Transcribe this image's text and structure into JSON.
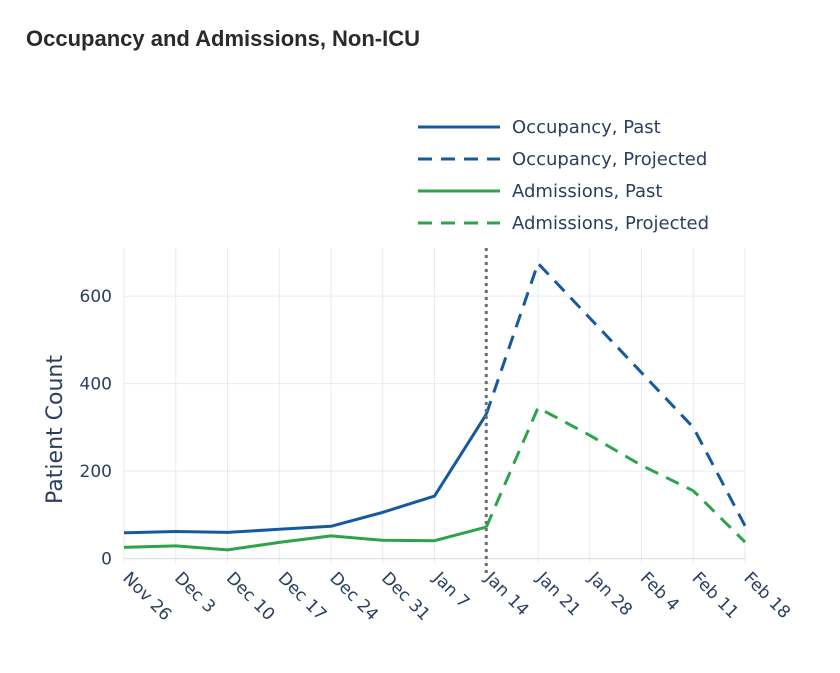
{
  "chart_data": {
    "type": "line",
    "title": "Occupancy and Admissions, Non-ICU",
    "xlabel": "",
    "ylabel": "Patient Count",
    "x_ticks": [
      "Nov 26",
      "Dec  3",
      "Dec 10",
      "Dec 17",
      "Dec 24",
      "Dec 31",
      "Jan  7",
      "Jan 14",
      "Jan 21",
      "Jan 28",
      "Feb  4",
      "Feb 11",
      "Feb 18"
    ],
    "y_ticks": [
      0,
      200,
      400,
      600
    ],
    "ylim": [
      -10,
      710
    ],
    "grid": true,
    "legend_position": "top-right",
    "divider_x": "Jan 14",
    "series": [
      {
        "name": "Occupancy, Past",
        "color": "#17599e",
        "dash": "solid",
        "points": [
          {
            "x": "Nov 26",
            "y": 59
          },
          {
            "x": "Dec  3",
            "y": 62
          },
          {
            "x": "Dec 10",
            "y": 60
          },
          {
            "x": "Dec 17",
            "y": 67
          },
          {
            "x": "Dec 24",
            "y": 74
          },
          {
            "x": "Dec 31",
            "y": 106
          },
          {
            "x": "Jan  7",
            "y": 143
          },
          {
            "x": "Jan 14",
            "y": 330
          }
        ]
      },
      {
        "name": "Occupancy, Projected",
        "color": "#17599e",
        "dash": "dashed",
        "points": [
          {
            "x": "Jan 14",
            "y": 330
          },
          {
            "x": "Jan 21",
            "y": 675
          },
          {
            "x": "Feb 11",
            "y": 300
          },
          {
            "x": "Feb 18",
            "y": 75
          }
        ]
      },
      {
        "name": "Admissions, Past",
        "color": "#2ca44b",
        "dash": "solid",
        "points": [
          {
            "x": "Nov 26",
            "y": 26
          },
          {
            "x": "Dec  3",
            "y": 29
          },
          {
            "x": "Dec 10",
            "y": 20
          },
          {
            "x": "Dec 17",
            "y": 37
          },
          {
            "x": "Dec 24",
            "y": 52
          },
          {
            "x": "Dec 31",
            "y": 42
          },
          {
            "x": "Jan  7",
            "y": 41
          },
          {
            "x": "Jan 14",
            "y": 72
          }
        ]
      },
      {
        "name": "Admissions, Projected",
        "color": "#2ca44b",
        "dash": "dashed",
        "points": [
          {
            "x": "Jan 14",
            "y": 72
          },
          {
            "x": "Jan 21",
            "y": 345
          },
          {
            "x": "Jan 28",
            "y": 282
          },
          {
            "x": "Feb  4",
            "y": 213
          },
          {
            "x": "Feb 11",
            "y": 155
          },
          {
            "x": "Feb 18",
            "y": 38
          }
        ]
      }
    ]
  }
}
